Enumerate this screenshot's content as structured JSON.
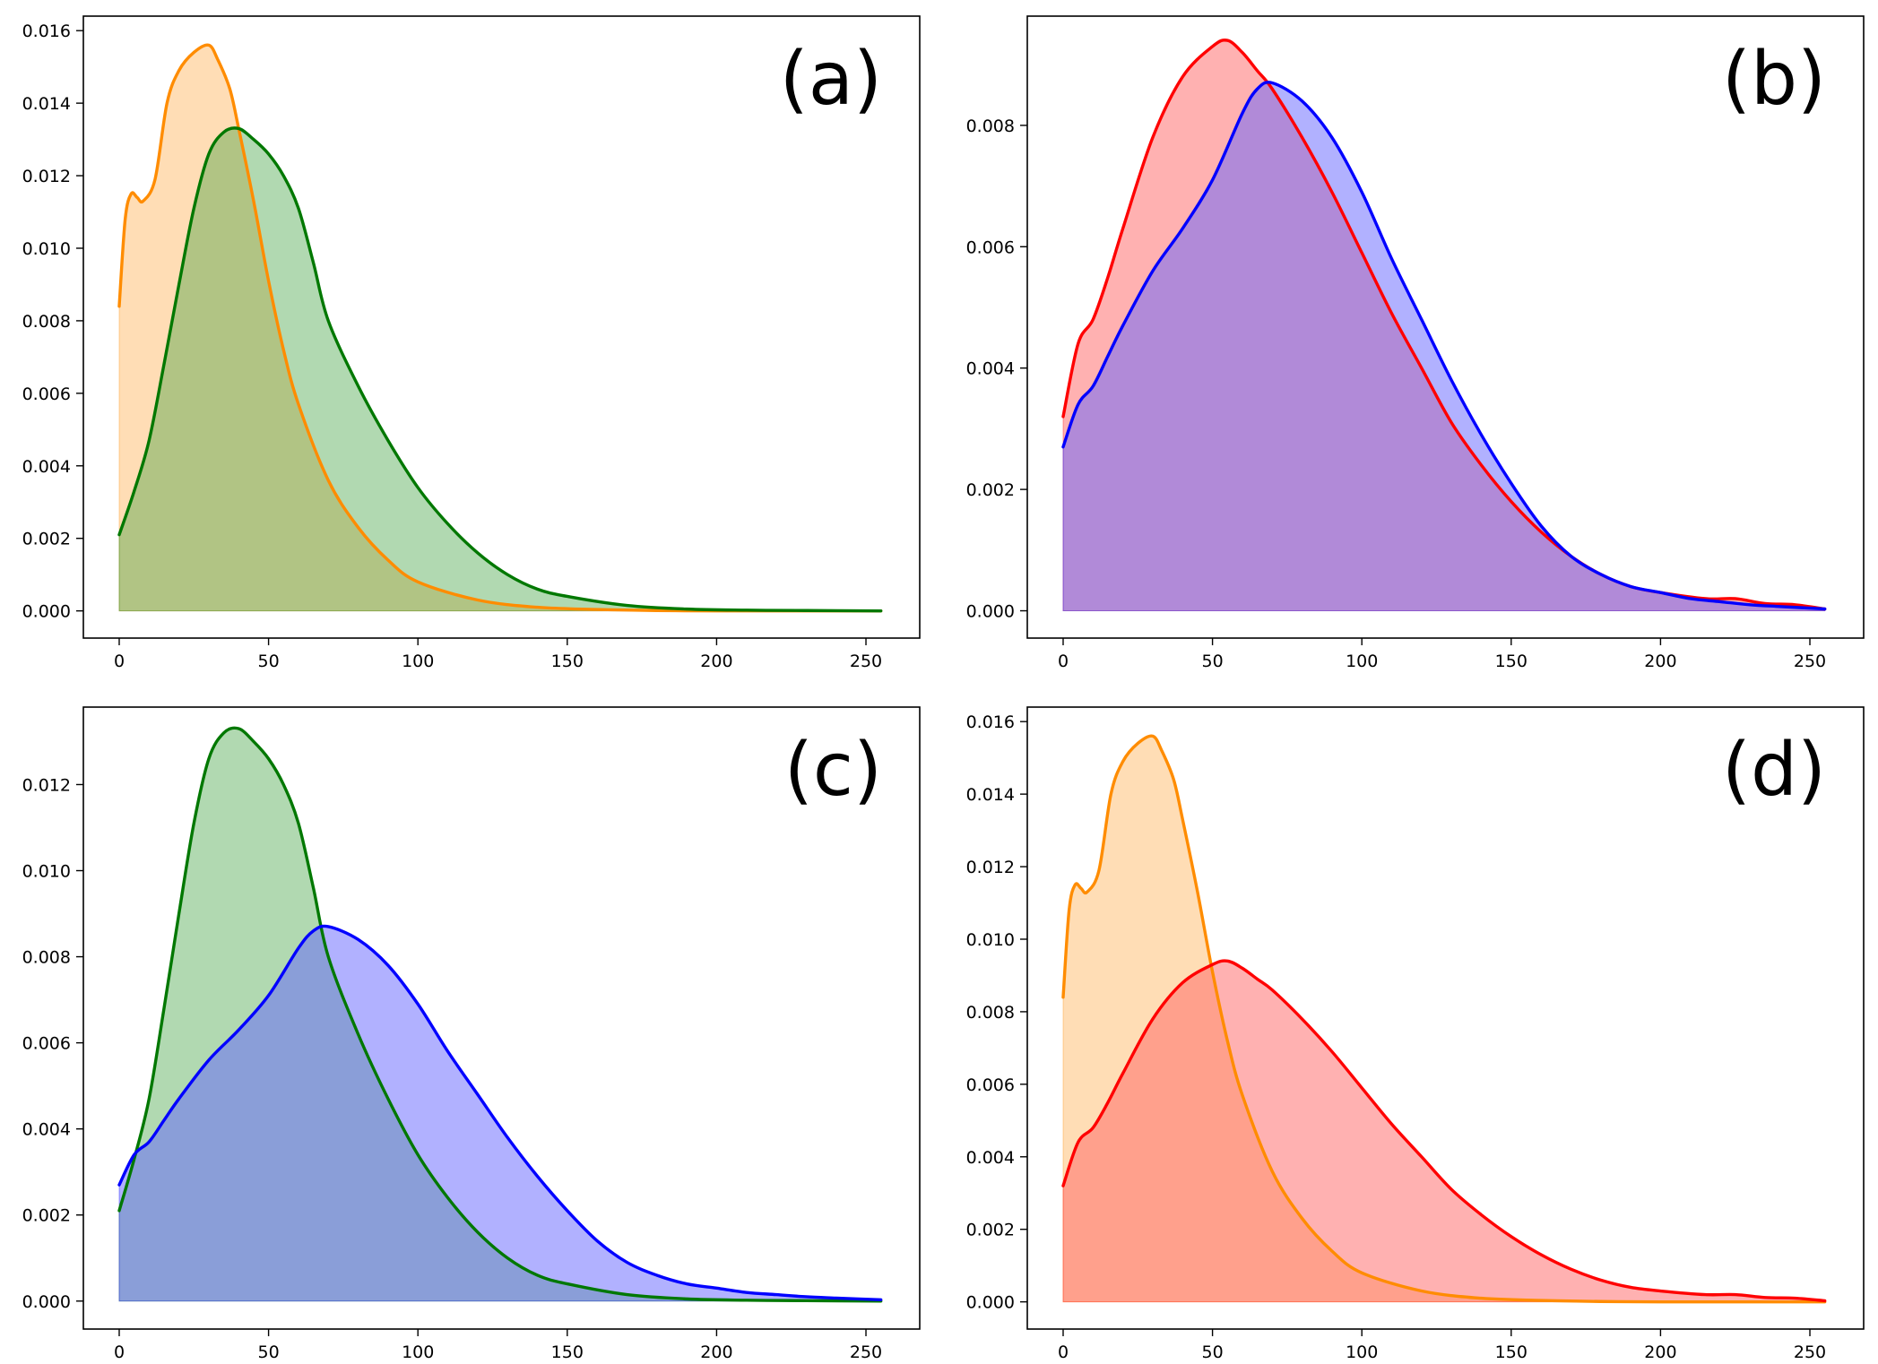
{
  "figure": {
    "background": "#ffffff"
  },
  "chart_data": [
    {
      "type": "area",
      "panel": "(a)",
      "xlim": [
        -12,
        268
      ],
      "ylim": [
        -0.00075,
        0.0164
      ],
      "xticks": [
        0,
        50,
        100,
        150,
        200,
        250
      ],
      "yticks": [
        0.0,
        0.002,
        0.004,
        0.006,
        0.008,
        0.01,
        0.012,
        0.014,
        0.016
      ],
      "ytick_labels": [
        "0.000",
        "0.002",
        "0.004",
        "0.006",
        "0.008",
        "0.010",
        "0.012",
        "0.014",
        "0.016"
      ],
      "xtick_labels": [
        "0",
        "50",
        "100",
        "150",
        "200",
        "250"
      ],
      "series": [
        {
          "name": "orange",
          "line_color": "#ff8c00",
          "fill_color": "#ffb35c",
          "fill_opacity": 0.45,
          "x": [
            0,
            2,
            4,
            6,
            8,
            12,
            16,
            20,
            25,
            30,
            33,
            37,
            40,
            45,
            50,
            55,
            60,
            70,
            80,
            90,
            100,
            120,
            140,
            160,
            180,
            200,
            230,
            255
          ],
          "y": [
            0.0084,
            0.0108,
            0.0115,
            0.0114,
            0.0113,
            0.0119,
            0.014,
            0.0149,
            0.0154,
            0.0156,
            0.0152,
            0.0144,
            0.0133,
            0.0113,
            0.0091,
            0.0072,
            0.0057,
            0.0036,
            0.0023,
            0.0014,
            0.0008,
            0.0003,
            0.0001,
            4e-05,
            1e-05,
            0.0,
            0.0,
            0.0
          ]
        },
        {
          "name": "green",
          "line_color": "#007800",
          "fill_color": "#3ca03c",
          "fill_opacity": 0.4,
          "x": [
            0,
            5,
            10,
            15,
            20,
            25,
            30,
            35,
            40,
            45,
            50,
            55,
            60,
            65,
            70,
            80,
            90,
            100,
            110,
            120,
            130,
            140,
            150,
            170,
            190,
            210,
            230,
            255
          ],
          "y": [
            0.0021,
            0.0033,
            0.0047,
            0.0068,
            0.009,
            0.0111,
            0.0126,
            0.0132,
            0.0133,
            0.013,
            0.0126,
            0.012,
            0.0111,
            0.0096,
            0.008,
            0.0062,
            0.0047,
            0.0034,
            0.0024,
            0.0016,
            0.001,
            0.0006,
            0.0004,
            0.00015,
            5e-05,
            2e-05,
            1e-05,
            0.0
          ]
        }
      ]
    },
    {
      "type": "area",
      "panel": "(b)",
      "xlim": [
        -12,
        268
      ],
      "ylim": [
        -0.00045,
        0.0098
      ],
      "xticks": [
        0,
        50,
        100,
        150,
        200,
        250
      ],
      "yticks": [
        0.0,
        0.002,
        0.004,
        0.006,
        0.008
      ],
      "ytick_labels": [
        "0.000",
        "0.002",
        "0.004",
        "0.006",
        "0.008"
      ],
      "xtick_labels": [
        "0",
        "50",
        "100",
        "150",
        "200",
        "250"
      ],
      "series": [
        {
          "name": "red",
          "line_color": "#ff0000",
          "fill_color": "#ff6464",
          "fill_opacity": 0.5,
          "x": [
            0,
            5,
            10,
            15,
            20,
            30,
            40,
            50,
            55,
            60,
            65,
            70,
            80,
            90,
            100,
            110,
            120,
            130,
            140,
            150,
            160,
            170,
            180,
            190,
            200,
            215,
            225,
            235,
            245,
            255
          ],
          "y": [
            0.0032,
            0.0044,
            0.0048,
            0.0055,
            0.0063,
            0.0078,
            0.0088,
            0.0093,
            0.0094,
            0.0092,
            0.0089,
            0.0086,
            0.0078,
            0.0069,
            0.0059,
            0.0049,
            0.004,
            0.0031,
            0.0024,
            0.0018,
            0.0013,
            0.0009,
            0.0006,
            0.0004,
            0.0003,
            0.0002,
            0.0002,
            0.00012,
            0.0001,
            3e-05
          ]
        },
        {
          "name": "blue",
          "line_color": "#0000ff",
          "fill_color": "#6464ff",
          "fill_opacity": 0.5,
          "x": [
            0,
            5,
            10,
            15,
            20,
            30,
            40,
            50,
            60,
            65,
            70,
            80,
            90,
            100,
            110,
            120,
            130,
            140,
            150,
            160,
            170,
            180,
            190,
            200,
            210,
            220,
            230,
            240,
            255
          ],
          "y": [
            0.0027,
            0.0034,
            0.0037,
            0.0042,
            0.0047,
            0.0056,
            0.0063,
            0.0071,
            0.0082,
            0.0086,
            0.0087,
            0.0084,
            0.0078,
            0.0069,
            0.0058,
            0.0048,
            0.0038,
            0.0029,
            0.0021,
            0.0014,
            0.0009,
            0.0006,
            0.0004,
            0.0003,
            0.0002,
            0.00015,
            0.0001,
            7e-05,
            3e-05
          ]
        }
      ]
    },
    {
      "type": "area",
      "panel": "(c)",
      "xlim": [
        -12,
        268
      ],
      "ylim": [
        -0.00065,
        0.0138
      ],
      "xticks": [
        0,
        50,
        100,
        150,
        200,
        250
      ],
      "yticks": [
        0.0,
        0.002,
        0.004,
        0.006,
        0.008,
        0.01,
        0.012
      ],
      "ytick_labels": [
        "0.000",
        "0.002",
        "0.004",
        "0.006",
        "0.008",
        "0.010",
        "0.012"
      ],
      "xtick_labels": [
        "0",
        "50",
        "100",
        "150",
        "200",
        "250"
      ],
      "series": [
        {
          "name": "green",
          "line_color": "#007800",
          "fill_color": "#3ca03c",
          "fill_opacity": 0.4,
          "x": [
            0,
            5,
            10,
            15,
            20,
            25,
            30,
            35,
            40,
            45,
            50,
            55,
            60,
            65,
            70,
            80,
            90,
            100,
            110,
            120,
            130,
            140,
            150,
            170,
            190,
            210,
            230,
            255
          ],
          "y": [
            0.0021,
            0.0033,
            0.0047,
            0.0068,
            0.009,
            0.0111,
            0.0126,
            0.0132,
            0.0133,
            0.013,
            0.0126,
            0.012,
            0.0111,
            0.0096,
            0.008,
            0.0062,
            0.0047,
            0.0034,
            0.0024,
            0.0016,
            0.001,
            0.0006,
            0.0004,
            0.00015,
            5e-05,
            2e-05,
            1e-05,
            0.0
          ]
        },
        {
          "name": "blue",
          "line_color": "#0000ff",
          "fill_color": "#6464ff",
          "fill_opacity": 0.5,
          "x": [
            0,
            5,
            10,
            15,
            20,
            30,
            40,
            50,
            60,
            65,
            70,
            80,
            90,
            100,
            110,
            120,
            130,
            140,
            150,
            160,
            170,
            180,
            190,
            200,
            210,
            220,
            230,
            240,
            255
          ],
          "y": [
            0.0027,
            0.0034,
            0.0037,
            0.0042,
            0.0047,
            0.0056,
            0.0063,
            0.0071,
            0.0082,
            0.0086,
            0.0087,
            0.0084,
            0.0078,
            0.0069,
            0.0058,
            0.0048,
            0.0038,
            0.0029,
            0.0021,
            0.0014,
            0.0009,
            0.0006,
            0.0004,
            0.0003,
            0.0002,
            0.00015,
            0.0001,
            7e-05,
            3e-05
          ]
        }
      ]
    },
    {
      "type": "area",
      "panel": "(d)",
      "xlim": [
        -12,
        268
      ],
      "ylim": [
        -0.00075,
        0.0164
      ],
      "xticks": [
        0,
        50,
        100,
        150,
        200,
        250
      ],
      "yticks": [
        0.0,
        0.002,
        0.004,
        0.006,
        0.008,
        0.01,
        0.012,
        0.014,
        0.016
      ],
      "ytick_labels": [
        "0.000",
        "0.002",
        "0.004",
        "0.006",
        "0.008",
        "0.010",
        "0.012",
        "0.014",
        "0.016"
      ],
      "xtick_labels": [
        "0",
        "50",
        "100",
        "150",
        "200",
        "250"
      ],
      "series": [
        {
          "name": "orange",
          "line_color": "#ff8c00",
          "fill_color": "#ffb35c",
          "fill_opacity": 0.45,
          "x": [
            0,
            2,
            4,
            6,
            8,
            12,
            16,
            20,
            25,
            30,
            33,
            37,
            40,
            45,
            50,
            55,
            60,
            70,
            80,
            90,
            100,
            120,
            140,
            160,
            180,
            200,
            230,
            255
          ],
          "y": [
            0.0084,
            0.0108,
            0.0115,
            0.0114,
            0.0113,
            0.0119,
            0.014,
            0.0149,
            0.0154,
            0.0156,
            0.0152,
            0.0144,
            0.0133,
            0.0113,
            0.0091,
            0.0072,
            0.0057,
            0.0036,
            0.0023,
            0.0014,
            0.0008,
            0.0003,
            0.0001,
            4e-05,
            1e-05,
            0.0,
            0.0,
            0.0
          ]
        },
        {
          "name": "red",
          "line_color": "#ff0000",
          "fill_color": "#ff6464",
          "fill_opacity": 0.5,
          "x": [
            0,
            5,
            10,
            15,
            20,
            30,
            40,
            50,
            55,
            60,
            65,
            70,
            80,
            90,
            100,
            110,
            120,
            130,
            140,
            150,
            160,
            170,
            180,
            190,
            200,
            215,
            225,
            235,
            245,
            255
          ],
          "y": [
            0.0032,
            0.0044,
            0.0048,
            0.0055,
            0.0063,
            0.0078,
            0.0088,
            0.0093,
            0.0094,
            0.0092,
            0.0089,
            0.0086,
            0.0078,
            0.0069,
            0.0059,
            0.0049,
            0.004,
            0.0031,
            0.0024,
            0.0018,
            0.0013,
            0.0009,
            0.0006,
            0.0004,
            0.0003,
            0.0002,
            0.0002,
            0.00012,
            0.0001,
            3e-05
          ]
        }
      ]
    }
  ]
}
